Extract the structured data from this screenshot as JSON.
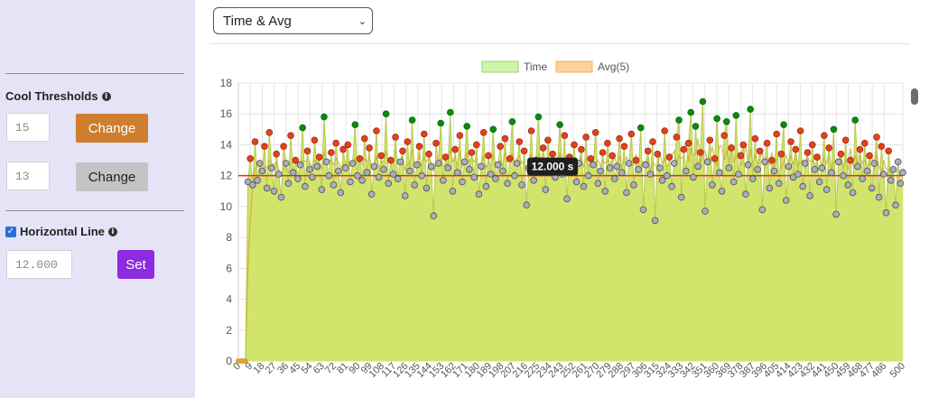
{
  "sidebar": {
    "cool_title": "Cool Thresholds",
    "threshold_high": {
      "value": "15",
      "button": "Change"
    },
    "threshold_low": {
      "value": "13",
      "button": "Change"
    },
    "hline_label": "Horizontal Line",
    "hline_checked": true,
    "hline_value": "12.000",
    "set_button": "Set"
  },
  "view_select": {
    "selected": "Time & Avg"
  },
  "icons": {
    "info": "info-icon",
    "checkbox": "checkbox-checked-icon",
    "dropdown": "chevron-down-icon"
  },
  "colors": {
    "time_fill": "#d3e46d",
    "time_legend": "#ccf5a8",
    "avg_legend": "#ffd197",
    "hline": "#e0301e",
    "dot_red": "#e8401c",
    "dot_green": "#0f8a10",
    "dot_gray": "#a9aeb8",
    "tooltip_bg": "#1f1f1f"
  },
  "chart_data": {
    "type": "area",
    "legend": [
      {
        "name": "Time"
      },
      {
        "name": "Avg(5)"
      }
    ],
    "ylim": [
      0,
      18
    ],
    "yticks": [
      0,
      2,
      4,
      6,
      8,
      10,
      12,
      14,
      16,
      18
    ],
    "xlim": [
      0,
      500
    ],
    "xticks": [
      0,
      9,
      18,
      27,
      36,
      45,
      54,
      63,
      72,
      81,
      90,
      99,
      108,
      117,
      126,
      135,
      144,
      153,
      162,
      171,
      180,
      189,
      198,
      207,
      216,
      225,
      234,
      243,
      252,
      261,
      270,
      279,
      288,
      297,
      306,
      315,
      324,
      333,
      342,
      351,
      360,
      369,
      378,
      387,
      396,
      405,
      414,
      423,
      432,
      441,
      450,
      459,
      468,
      477,
      486,
      500
    ],
    "horizontal_line": 12.0,
    "tooltip": "12.000 s",
    "tooltip_x": 250,
    "thresholds": {
      "high": 15,
      "low": 13
    },
    "time_values": [
      0,
      0,
      0,
      0,
      11.6,
      13.1,
      11.4,
      14.2,
      11.7,
      12.8,
      12.3,
      13.9,
      11.2,
      14.8,
      12.5,
      11.0,
      13.4,
      12.1,
      10.6,
      13.9,
      12.8,
      11.5,
      14.6,
      12.2,
      13.0,
      11.8,
      12.7,
      15.1,
      11.3,
      13.6,
      12.4,
      11.9,
      14.3,
      12.6,
      13.2,
      11.1,
      15.8,
      12.9,
      12.0,
      13.5,
      11.4,
      14.1,
      12.3,
      10.9,
      13.7,
      12.5,
      14.0,
      11.6,
      12.8,
      15.3,
      12.0,
      13.1,
      11.7,
      14.4,
      12.2,
      13.8,
      10.8,
      12.6,
      14.9,
      11.9,
      13.3,
      12.4,
      16.0,
      11.5,
      13.0,
      12.1,
      14.5,
      11.8,
      12.9,
      13.6,
      10.7,
      14.2,
      12.3,
      15.6,
      11.4,
      12.7,
      13.9,
      12.0,
      14.7,
      11.2,
      13.4,
      12.6,
      9.4,
      14.1,
      12.8,
      15.4,
      11.7,
      13.2,
      12.5,
      16.1,
      11.0,
      13.7,
      12.2,
      14.6,
      11.6,
      12.9,
      15.2,
      12.4,
      13.5,
      11.9,
      14.0,
      10.8,
      12.6,
      14.8,
      11.3,
      13.3,
      12.1,
      15.0,
      11.8,
      12.7,
      13.9,
      12.3,
      14.4,
      11.5,
      13.1,
      15.5,
      12.0,
      12.8,
      14.2,
      11.4,
      13.6,
      10.1,
      12.5,
      14.9,
      11.7,
      13.0,
      15.8,
      12.2,
      13.8,
      11.1,
      14.3,
      12.6,
      13.4,
      11.9,
      12.9,
      15.3,
      12.1,
      14.6,
      10.5,
      13.2,
      12.4,
      14.0,
      11.6,
      12.8,
      13.7,
      11.3,
      14.5,
      12.0,
      13.1,
      12.7,
      14.8,
      11.5,
      12.3,
      13.5,
      11.0,
      14.1,
      12.5,
      13.3,
      11.8,
      12.6,
      14.4,
      12.2,
      13.9,
      10.9,
      12.8,
      14.7,
      11.4,
      13.0,
      12.4,
      15.1,
      9.8,
      12.7,
      13.6,
      12.1,
      14.2,
      9.1,
      13.4,
      12.5,
      11.7,
      14.9,
      12.0,
      13.2,
      11.3,
      12.8,
      14.5,
      15.6,
      10.6,
      13.7,
      12.3,
      14.1,
      16.1,
      11.9,
      15.2,
      12.6,
      13.5,
      16.8,
      9.7,
      12.9,
      14.3,
      11.4,
      13.1,
      15.7,
      12.2,
      11.0,
      14.6,
      15.5,
      12.5,
      13.8,
      11.6,
      15.9,
      12.1,
      13.3,
      14.0,
      10.8,
      12.7,
      16.3,
      11.8,
      14.4,
      12.4,
      13.6,
      9.8,
      12.9,
      14.1,
      11.2,
      13.0,
      12.3,
      14.7,
      11.5,
      13.4,
      15.3,
      10.4,
      12.6,
      14.2,
      11.9,
      13.7,
      12.1,
      14.9,
      11.3,
      12.8,
      13.5,
      10.7,
      14.0,
      12.4,
      13.2,
      11.6,
      12.5,
      14.6,
      11.1,
      13.8,
      12.2,
      15.0,
      9.5,
      12.9,
      13.4,
      12.0,
      14.3,
      11.4,
      13.0,
      10.9,
      15.6,
      12.6,
      13.7,
      11.8,
      14.1,
      12.3,
      13.3,
      11.2,
      12.8,
      14.5,
      10.6,
      13.9,
      12.1,
      9.6,
      13.6,
      11.7,
      12.4,
      10.1,
      12.9,
      11.5,
      12.2
    ],
    "avg_values": [
      0,
      0,
      0,
      0,
      5.8,
      9.2,
      11.3,
      12.4,
      12.6,
      12.8,
      12.2,
      12.6,
      12.5,
      13.0,
      12.8,
      12.7,
      12.9,
      12.4,
      12.0,
      12.4,
      12.7,
      12.2,
      12.8,
      12.8,
      12.9,
      12.6,
      12.9,
      13.0,
      12.9,
      13.1,
      12.8,
      12.6,
      13.0,
      12.9,
      13.0,
      12.4,
      13.5,
      13.1,
      13.0,
      13.0,
      12.7,
      13.1,
      12.9,
      12.5,
      12.8,
      12.6,
      12.9,
      12.6,
      12.7,
      13.1,
      12.8,
      13.0,
      12.7,
      13.1,
      12.9,
      13.2,
      12.6,
      12.6,
      13.3,
      12.5,
      12.9,
      12.9,
      13.6,
      12.9,
      13.0,
      12.7,
      13.6,
      12.8,
      12.9,
      13.2,
      12.4,
      12.7,
      12.8,
      13.7,
      12.8,
      12.9,
      13.3,
      12.6,
      13.2,
      12.9,
      13.2,
      12.8,
      12.3,
      12.9,
      12.8,
      13.1,
      12.6,
      12.7,
      12.9,
      13.7,
      12.9,
      13.2,
      12.7,
      13.6,
      12.6,
      12.9,
      13.5,
      12.9,
      13.2,
      12.9,
      13.1,
      12.6,
      12.8,
      13.3,
      12.5,
      12.9,
      12.6,
      13.3,
      12.8,
      12.8,
      13.0,
      12.6,
      13.5,
      12.9,
      13.0,
      13.4,
      12.9,
      13.1,
      13.3,
      12.8,
      13.0,
      12.3,
      12.8,
      13.4,
      12.6,
      12.8,
      13.4,
      12.9,
      13.6,
      12.7,
      13.2,
      12.8,
      13.1,
      12.8,
      12.8,
      13.5,
      12.7,
      13.2,
      12.6,
      13.0,
      12.8,
      13.1,
      12.9,
      12.7,
      13.2,
      12.6,
      13.1,
      12.6,
      13.0,
      12.6,
      12.7,
      13.0,
      12.6,
      13.0,
      12.8,
      13.0,
      12.7,
      12.8,
      13.2,
      12.6,
      13.3,
      12.6,
      12.9,
      13.2,
      12.6,
      12.9,
      12.7,
      13.4,
      12.2,
      12.6,
      12.9,
      12.5,
      13.1,
      12.0,
      12.9,
      12.7,
      12.6,
      13.4,
      12.8,
      13.1,
      12.6,
      12.8,
      13.3,
      13.6,
      12.8,
      13.3,
      13.1,
      13.3,
      14.1,
      12.9,
      13.8,
      13.3,
      13.4,
      14.4,
      12.8,
      13.6,
      13.6,
      12.9,
      13.2,
      13.9,
      12.9,
      12.6,
      13.9,
      13.9,
      13.0,
      13.7,
      12.8,
      14.1,
      12.9,
      13.2,
      13.5,
      12.7,
      12.9,
      14.1,
      12.7,
      13.7,
      12.8,
      13.3,
      12.8,
      13.1,
      13.5,
      12.5,
      13.0,
      12.7,
      13.5,
      12.6,
      13.0,
      13.6,
      12.5,
      12.9,
      13.3,
      12.8,
      13.3,
      12.7,
      13.6,
      12.6,
      12.9,
      13.0,
      12.4,
      13.2,
      12.9,
      13.0,
      12.6,
      12.7,
      13.4,
      12.3,
      13.2,
      12.8,
      13.6,
      12.3,
      12.9,
      13.0,
      12.7,
      13.4,
      12.5,
      13.0,
      12.4,
      13.8,
      12.6,
      13.3,
      12.7,
      13.4,
      12.8,
      13.0,
      12.5,
      12.8,
      13.3,
      12.3,
      13.4,
      12.6,
      12.1,
      13.0,
      12.4,
      12.4,
      11.9,
      12.6,
      12.3,
      12.2
    ]
  }
}
